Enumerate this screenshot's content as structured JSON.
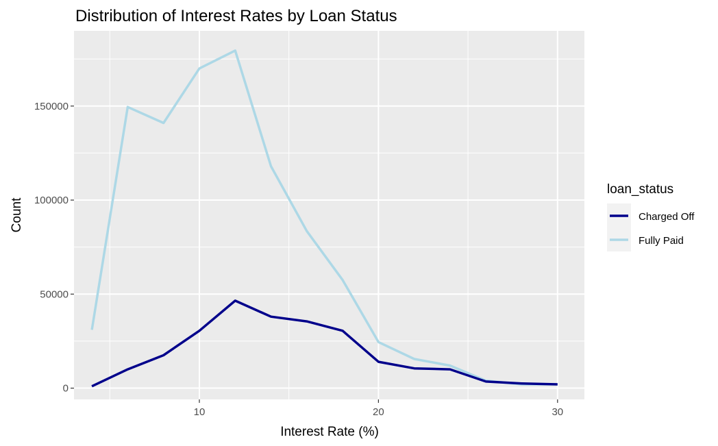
{
  "chart_data": {
    "type": "line",
    "title": "Distribution of Interest Rates by Loan Status",
    "xlabel": "Interest Rate (%)",
    "ylabel": "Count",
    "xlim": [
      3,
      31.5
    ],
    "ylim": [
      -6000,
      190000
    ],
    "x_ticks": [
      10,
      20,
      30
    ],
    "x_tick_labels": [
      "10",
      "20",
      "30"
    ],
    "y_ticks": [
      0,
      50000,
      100000,
      150000
    ],
    "y_tick_labels": [
      "0",
      "50000",
      "100000",
      "150000"
    ],
    "grid": true,
    "legend": {
      "title": "loan_status",
      "position": "right"
    },
    "series": [
      {
        "name": "Charged Off",
        "color": "#00008B",
        "x": [
          4,
          6,
          8,
          10,
          12,
          14,
          16,
          18,
          20,
          22,
          24,
          26,
          28,
          30
        ],
        "y": [
          1000,
          10000,
          17500,
          30500,
          46500,
          38000,
          35500,
          30500,
          14000,
          10500,
          10000,
          3500,
          2500,
          2000
        ]
      },
      {
        "name": "Fully Paid",
        "color": "#ADD8E6",
        "x": [
          4,
          6,
          8,
          10,
          12,
          14,
          16,
          18,
          20,
          22,
          24,
          26,
          28,
          30
        ],
        "y": [
          31000,
          149500,
          141000,
          170000,
          179500,
          118000,
          83500,
          57500,
          24500,
          15500,
          12000,
          4000,
          2000,
          2000
        ]
      }
    ]
  }
}
